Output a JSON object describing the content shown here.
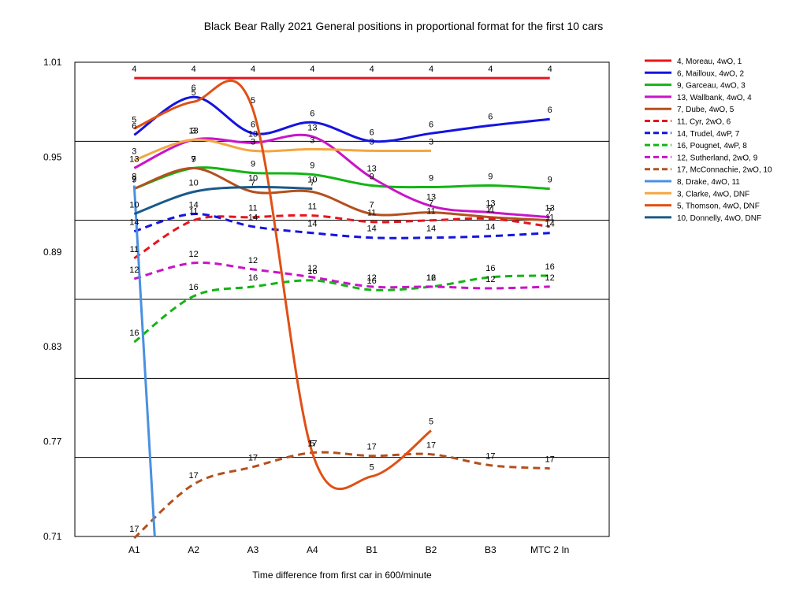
{
  "chart_data": {
    "type": "line",
    "title": "Black Bear Rally 2021  General positions in proportional format for the first 10 cars",
    "xlabel": "Time difference from first car in 600/minute",
    "ylabel": "",
    "categories": [
      "A1",
      "A2",
      "A3",
      "A4",
      "B1",
      "B2",
      "B3",
      "MTC 2 In"
    ],
    "ylim": [
      0.71,
      1.01
    ],
    "yticks": [
      "0.71",
      "0.77",
      "0.83",
      "0.89",
      "0.95",
      "1.01"
    ],
    "grid": true,
    "legend_position": "right",
    "series": [
      {
        "name": "4, Moreau, 4wO, 1",
        "label": "4",
        "color": "#e8141c",
        "dash": false,
        "values": [
          1.0,
          1.0,
          1.0,
          1.0,
          1.0,
          1.0,
          1.0,
          1.0
        ]
      },
      {
        "name": "6, Mailloux, 4wO, 2",
        "label": "6",
        "color": "#1414e0",
        "dash": false,
        "values": [
          0.964,
          0.988,
          0.965,
          0.972,
          0.96,
          0.965,
          0.97,
          0.974
        ]
      },
      {
        "name": "9, Garceau, 4wO, 3",
        "label": "9",
        "color": "#14b414",
        "dash": false,
        "values": [
          0.93,
          0.943,
          0.94,
          0.939,
          0.932,
          0.931,
          0.932,
          0.93
        ]
      },
      {
        "name": "13, Wallbank, 4wO, 4",
        "label": "13",
        "color": "#c814c8",
        "dash": false,
        "values": [
          0.943,
          0.961,
          0.959,
          0.963,
          0.937,
          0.919,
          0.915,
          0.912
        ]
      },
      {
        "name": "7, Dube, 4wO, 5",
        "label": "7",
        "color": "#b4501e",
        "dash": false,
        "values": [
          0.93,
          0.943,
          0.928,
          0.928,
          0.914,
          0.915,
          0.912,
          0.91
        ]
      },
      {
        "name": "11, Cyr, 2wO, 6",
        "label": "11",
        "color": "#e8141c",
        "dash": true,
        "values": [
          0.886,
          0.91,
          0.912,
          0.913,
          0.909,
          0.91,
          0.911,
          0.906
        ]
      },
      {
        "name": "14, Trudel, 4wP, 7",
        "label": "14",
        "color": "#1414e0",
        "dash": true,
        "values": [
          0.903,
          0.914,
          0.906,
          0.902,
          0.899,
          0.899,
          0.9,
          0.902
        ]
      },
      {
        "name": "16, Pougnet, 4wP, 8",
        "label": "16",
        "color": "#14b414",
        "dash": true,
        "values": [
          0.833,
          0.862,
          0.868,
          0.872,
          0.866,
          0.868,
          0.874,
          0.875
        ]
      },
      {
        "name": "12, Sutherland, 2wO, 9",
        "label": "12",
        "color": "#c814c8",
        "dash": true,
        "values": [
          0.873,
          0.883,
          0.879,
          0.874,
          0.868,
          0.868,
          0.867,
          0.868
        ]
      },
      {
        "name": "17, McConnachie, 2wO, 10",
        "label": "17",
        "color": "#b4501e",
        "dash": true,
        "values": [
          0.709,
          0.743,
          0.754,
          0.763,
          0.761,
          0.762,
          0.755,
          0.753
        ]
      },
      {
        "name": "8, Drake, 4wO, 11",
        "label": "8",
        "color": "#4a90e0",
        "dash": false,
        "values": [
          0.932,
          null,
          null,
          null,
          null,
          null,
          null,
          null
        ],
        "drop_to": 0.71
      },
      {
        "name": "3, Clarke, 4wO, DNF",
        "label": "3",
        "color": "#f4a640",
        "dash": false,
        "values": [
          0.948,
          0.961,
          0.954,
          0.955,
          0.954,
          0.954,
          null,
          null
        ]
      },
      {
        "name": "5, Thomson, 4wO, DNF",
        "label": "5",
        "color": "#e05014",
        "dash": false,
        "values": [
          0.968,
          0.985,
          0.98,
          0.763,
          0.748,
          0.777,
          null,
          null
        ]
      },
      {
        "name": "10, Donnelly, 4wO, DNF",
        "label": "10",
        "color": "#1a5a8a",
        "dash": false,
        "values": [
          0.914,
          0.928,
          0.931,
          0.93,
          null,
          null,
          null,
          null
        ]
      }
    ]
  }
}
